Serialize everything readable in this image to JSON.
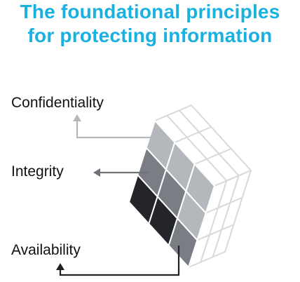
{
  "title": {
    "line1": "The foundational principles",
    "line2": "for protecting information",
    "color": "#1ab0e0"
  },
  "labels": {
    "confidentiality": "Confidentiality",
    "integrity": "Integrity",
    "availability": "Availability"
  },
  "colors": {
    "confidentiality": "#b4b8bc",
    "integrity": "#7a7e84",
    "availability": "#23252a",
    "cube_lines": "#d7d9dc",
    "arrow_light": "#b4b8bc",
    "arrow_mid": "#6f7378",
    "arrow_dark": "#1f2125"
  }
}
